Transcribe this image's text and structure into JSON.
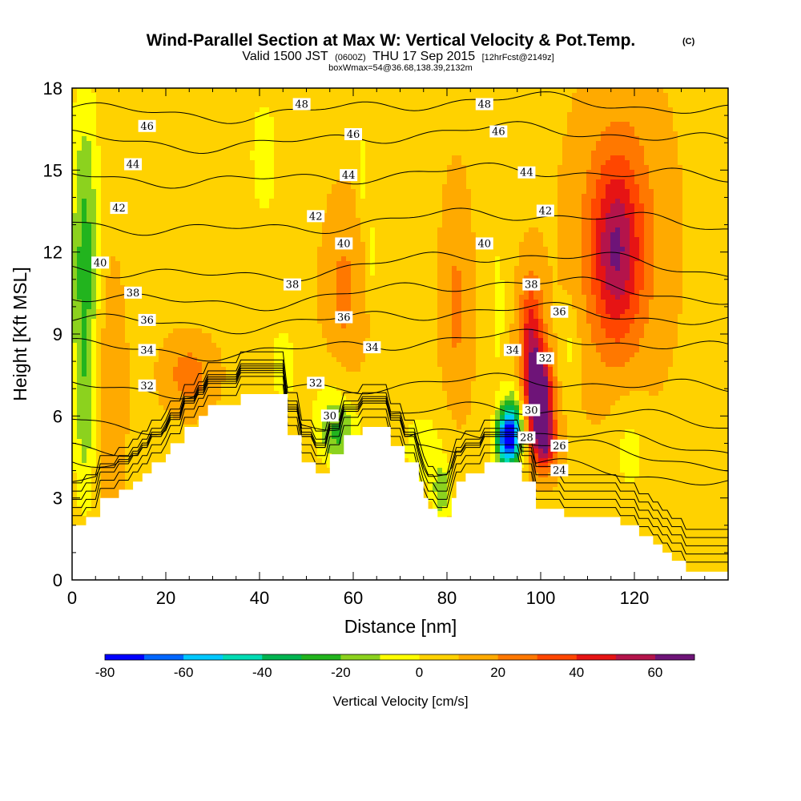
{
  "chart_data": {
    "type": "heatmap",
    "title": "Wind-Parallel Section at Max W: Vertical Velocity & Pot.Temp.",
    "title_mark": "(C)",
    "subtitle_parts": [
      "Valid 1500 JST",
      "(0600Z)",
      "THU 17 Sep 2015",
      "[12hrFcst@2149z]"
    ],
    "subtitle2": "boxWmax=54@36.68,138.39,2132m",
    "xlabel": "Distance [nm]",
    "ylabel": "Height [Kft MSL]",
    "xlim": [
      0,
      140
    ],
    "ylim": [
      0,
      18
    ],
    "xticks": [
      "0",
      "20",
      "40",
      "60",
      "80",
      "100",
      "120"
    ],
    "xtick_values": [
      0,
      20,
      40,
      60,
      80,
      100,
      120
    ],
    "yticks": [
      "0",
      "3",
      "6",
      "9",
      "12",
      "15",
      "18"
    ],
    "ytick_values": [
      0,
      3,
      6,
      9,
      12,
      15,
      18
    ],
    "colorbar": {
      "label": "Vertical Velocity [cm/s]",
      "range": [
        -80,
        70
      ],
      "step": 10,
      "tick_labels": [
        "-80",
        "-60",
        "-40",
        "-20",
        "0",
        "20",
        "40",
        "60"
      ],
      "tick_values": [
        -80,
        -60,
        -40,
        -20,
        0,
        20,
        40,
        60
      ],
      "colors": [
        "#0000ff",
        "#0066ff",
        "#00c8ff",
        "#00dcb4",
        "#00b450",
        "#22b41e",
        "#8cd21e",
        "#ffff00",
        "#ffd200",
        "#ffaa00",
        "#ff7800",
        "#ff4600",
        "#e61414",
        "#b4144b",
        "#6e1478"
      ]
    },
    "terrain": [
      [
        0,
        2.0
      ],
      [
        3,
        2.0
      ],
      [
        3,
        2.3
      ],
      [
        6,
        2.3
      ],
      [
        6,
        3.0
      ],
      [
        10,
        3.0
      ],
      [
        10,
        3.3
      ],
      [
        13,
        3.3
      ],
      [
        13,
        3.6
      ],
      [
        15,
        3.6
      ],
      [
        15,
        3.9
      ],
      [
        17,
        3.9
      ],
      [
        17,
        4.3
      ],
      [
        20,
        4.3
      ],
      [
        20,
        4.6
      ],
      [
        21,
        4.6
      ],
      [
        21,
        5.0
      ],
      [
        24,
        5.0
      ],
      [
        24,
        5.6
      ],
      [
        27,
        5.6
      ],
      [
        27,
        6.0
      ],
      [
        29,
        6.0
      ],
      [
        29,
        6.4
      ],
      [
        36,
        6.4
      ],
      [
        36,
        6.8
      ],
      [
        46,
        6.8
      ],
      [
        46,
        6.4
      ],
      [
        46,
        5.3
      ],
      [
        49,
        5.3
      ],
      [
        49,
        4.3
      ],
      [
        52,
        4.3
      ],
      [
        52,
        3.9
      ],
      [
        55,
        3.9
      ],
      [
        55,
        4.6
      ],
      [
        58,
        4.6
      ],
      [
        58,
        5.3
      ],
      [
        62,
        5.3
      ],
      [
        62,
        5.6
      ],
      [
        68,
        5.6
      ],
      [
        68,
        4.9
      ],
      [
        71,
        4.9
      ],
      [
        71,
        4.3
      ],
      [
        74,
        4.3
      ],
      [
        74,
        3.6
      ],
      [
        75,
        3.6
      ],
      [
        75,
        3.0
      ],
      [
        76,
        3.0
      ],
      [
        76,
        2.6
      ],
      [
        78,
        2.6
      ],
      [
        78,
        2.3
      ],
      [
        81,
        2.3
      ],
      [
        81,
        3.0
      ],
      [
        82,
        3.0
      ],
      [
        82,
        3.6
      ],
      [
        84,
        3.6
      ],
      [
        84,
        3.9
      ],
      [
        88,
        3.9
      ],
      [
        88,
        4.3
      ],
      [
        96,
        4.3
      ],
      [
        96,
        3.6
      ],
      [
        99,
        3.6
      ],
      [
        99,
        3.0
      ],
      [
        99,
        2.6
      ],
      [
        105,
        2.6
      ],
      [
        105,
        2.3
      ],
      [
        117,
        2.3
      ],
      [
        117,
        2.0
      ],
      [
        121,
        2.0
      ],
      [
        121,
        1.6
      ],
      [
        124,
        1.6
      ],
      [
        124,
        1.3
      ],
      [
        126,
        1.3
      ],
      [
        126,
        1.0
      ],
      [
        128,
        1.0
      ],
      [
        128,
        0.7
      ],
      [
        131,
        0.7
      ],
      [
        131,
        0.3
      ],
      [
        140,
        0.3
      ]
    ],
    "wfield_base": 8,
    "wfield": [
      {
        "x": 3,
        "y": 12,
        "rx": 3,
        "ry": 6,
        "v": -22
      },
      {
        "x": 2,
        "y": 10,
        "rx": 3,
        "ry": 7,
        "v": -12
      },
      {
        "x": 3,
        "y": 5.5,
        "rx": 2,
        "ry": 3,
        "v": -10
      },
      {
        "x": 41,
        "y": 15.5,
        "rx": 4,
        "ry": 3,
        "v": -12
      },
      {
        "x": 45,
        "y": 7.8,
        "rx": 3,
        "ry": 1.5,
        "v": -15
      },
      {
        "x": 57,
        "y": 5.3,
        "rx": 4,
        "ry": 1.2,
        "v": -25
      },
      {
        "x": 55,
        "y": 6.4,
        "rx": 5,
        "ry": 1.8,
        "v": -10
      },
      {
        "x": 62,
        "y": 15,
        "rx": 1,
        "ry": 1.5,
        "v": -14
      },
      {
        "x": 64,
        "y": 12,
        "rx": 1.2,
        "ry": 1.5,
        "v": -13
      },
      {
        "x": 75,
        "y": 4.8,
        "rx": 6,
        "ry": 1.8,
        "v": -12
      },
      {
        "x": 79,
        "y": 3.2,
        "rx": 2,
        "ry": 1,
        "v": -25
      },
      {
        "x": 91,
        "y": 10,
        "rx": 1.5,
        "ry": 3,
        "v": -12
      },
      {
        "x": 106,
        "y": 8.5,
        "rx": 2,
        "ry": 1.5,
        "v": -12
      },
      {
        "x": 119,
        "y": 4.8,
        "rx": 4,
        "ry": 2,
        "v": -13
      },
      {
        "x": 93,
        "y": 5.1,
        "rx": 2.5,
        "ry": 1.0,
        "v": -75
      },
      {
        "x": 94,
        "y": 5.8,
        "rx": 2.5,
        "ry": 1.2,
        "v": -35
      },
      {
        "x": 100,
        "y": 6.6,
        "rx": 2.5,
        "ry": 1.6,
        "v": 68
      },
      {
        "x": 98,
        "y": 8.5,
        "rx": 2.5,
        "ry": 2.5,
        "v": 42
      },
      {
        "x": 101,
        "y": 5,
        "rx": 2.5,
        "ry": 1,
        "v": 40
      },
      {
        "x": 116,
        "y": 12,
        "rx": 5,
        "ry": 3,
        "v": 35
      },
      {
        "x": 117,
        "y": 12.5,
        "rx": 9,
        "ry": 5,
        "v": 20
      },
      {
        "x": 25,
        "y": 7.5,
        "rx": 5,
        "ry": 1.2,
        "v": 18
      },
      {
        "x": 58,
        "y": 10.5,
        "rx": 4,
        "ry": 3,
        "v": 15
      },
      {
        "x": 82,
        "y": 10,
        "rx": 3,
        "ry": 4,
        "v": 14
      },
      {
        "x": 8,
        "y": 7,
        "rx": 3,
        "ry": 4,
        "v": 12
      }
    ],
    "theta_levels": [
      {
        "label": "48",
        "y0": 17.3,
        "amp": -0.3
      },
      {
        "label": "46",
        "y0": 16.2,
        "amp": -0.3
      },
      {
        "label": "44",
        "y0": 14.8,
        "amp": -0.2
      },
      {
        "label": "42",
        "y0": 13.1,
        "amp": -0.3
      },
      {
        "label": "40",
        "y0": 11.5,
        "amp": -0.4
      },
      {
        "label": "38",
        "y0": 10.5,
        "amp": -0.4
      },
      {
        "label": "36",
        "y0": 9.6,
        "amp": -0.3
      },
      {
        "label": "34",
        "y0": 8.6,
        "amp": -0.3
      },
      {
        "label": "32",
        "y0": 7.1,
        "amp": -0.2
      },
      {
        "label": "30",
        "y0": 5.9,
        "amp": -0.4
      },
      {
        "label": "28",
        "y0": 5.0,
        "amp": -0.4
      },
      {
        "label": "26",
        "y0": 4.5,
        "amp": -0.5
      },
      {
        "label": "24",
        "y0": 3.8,
        "amp": -0.4
      }
    ],
    "contour_labels": [
      {
        "text": "48",
        "x": 49,
        "y": 17.4
      },
      {
        "text": "48",
        "x": 88,
        "y": 17.4
      },
      {
        "text": "46",
        "x": 16,
        "y": 16.6
      },
      {
        "text": "46",
        "x": 60,
        "y": 16.3
      },
      {
        "text": "46",
        "x": 91,
        "y": 16.4
      },
      {
        "text": "44",
        "x": 13,
        "y": 15.2
      },
      {
        "text": "44",
        "x": 59,
        "y": 14.8
      },
      {
        "text": "44",
        "x": 97,
        "y": 14.9
      },
      {
        "text": "42",
        "x": 10,
        "y": 13.6
      },
      {
        "text": "42",
        "x": 52,
        "y": 13.3
      },
      {
        "text": "42",
        "x": 101,
        "y": 13.5
      },
      {
        "text": "40",
        "x": 6,
        "y": 11.6
      },
      {
        "text": "40",
        "x": 58,
        "y": 12.3
      },
      {
        "text": "40",
        "x": 88,
        "y": 12.3
      },
      {
        "text": "38",
        "x": 13,
        "y": 10.5
      },
      {
        "text": "38",
        "x": 47,
        "y": 10.8
      },
      {
        "text": "38",
        "x": 98,
        "y": 10.8
      },
      {
        "text": "36",
        "x": 16,
        "y": 9.5
      },
      {
        "text": "36",
        "x": 58,
        "y": 9.6
      },
      {
        "text": "36",
        "x": 104,
        "y": 9.8
      },
      {
        "text": "34",
        "x": 16,
        "y": 8.4
      },
      {
        "text": "34",
        "x": 64,
        "y": 8.5
      },
      {
        "text": "34",
        "x": 94,
        "y": 8.4
      },
      {
        "text": "32",
        "x": 16,
        "y": 7.1
      },
      {
        "text": "32",
        "x": 52,
        "y": 7.2
      },
      {
        "text": "32",
        "x": 101,
        "y": 8.1
      },
      {
        "text": "30",
        "x": 55,
        "y": 6.0
      },
      {
        "text": "30",
        "x": 98,
        "y": 6.2
      },
      {
        "text": "28",
        "x": 97,
        "y": 5.2
      },
      {
        "text": "26",
        "x": 104,
        "y": 4.9
      },
      {
        "text": "24",
        "x": 104,
        "y": 4.0
      }
    ]
  }
}
